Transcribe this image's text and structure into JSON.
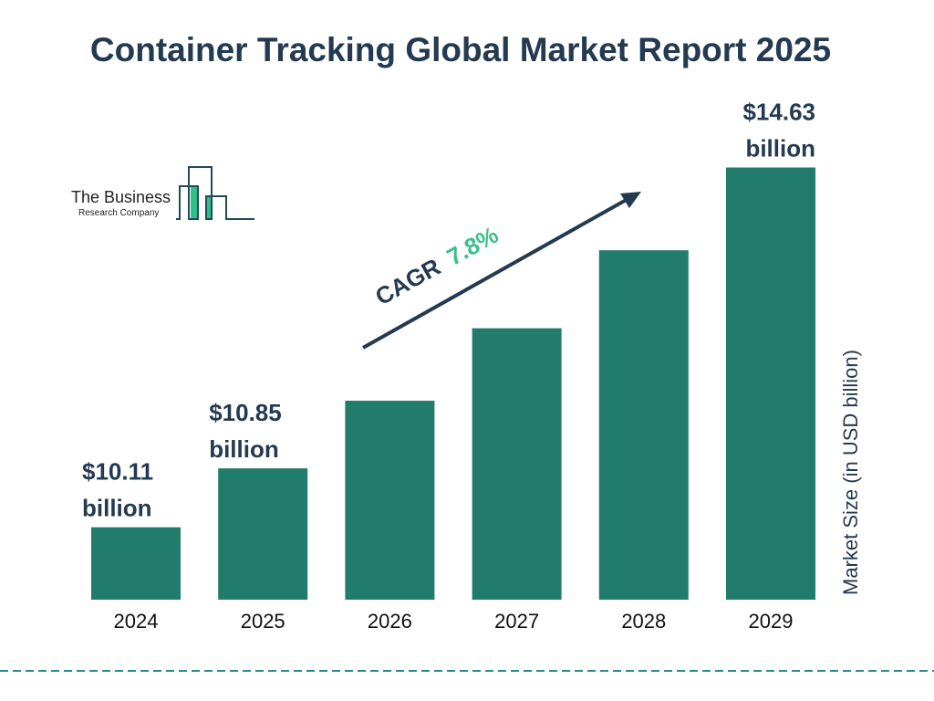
{
  "chart_data": {
    "type": "bar",
    "title": "Container Tracking Global Market Report 2025",
    "ylabel": "Market Size (in USD billion)",
    "categories": [
      "2024",
      "2025",
      "2026",
      "2027",
      "2028",
      "2029"
    ],
    "values": [
      10.11,
      10.85,
      11.7,
      12.61,
      13.59,
      14.63
    ],
    "data_labels": [
      {
        "index": 0,
        "line1": "$10.11",
        "line2": "billion"
      },
      {
        "index": 1,
        "line1": "$10.85",
        "line2": "billion"
      },
      {
        "index": 5,
        "line1": "$14.63",
        "line2": "billion"
      }
    ],
    "annotation": {
      "label": "CAGR",
      "value": "7.8%"
    },
    "grid": false,
    "colors": {
      "bar": "#217c6c",
      "text": "#233a51",
      "cagr": "#3dbf8a",
      "divider": "#2a8c8c"
    }
  },
  "logo": {
    "line1": "The Business",
    "line2": "Research Company"
  }
}
